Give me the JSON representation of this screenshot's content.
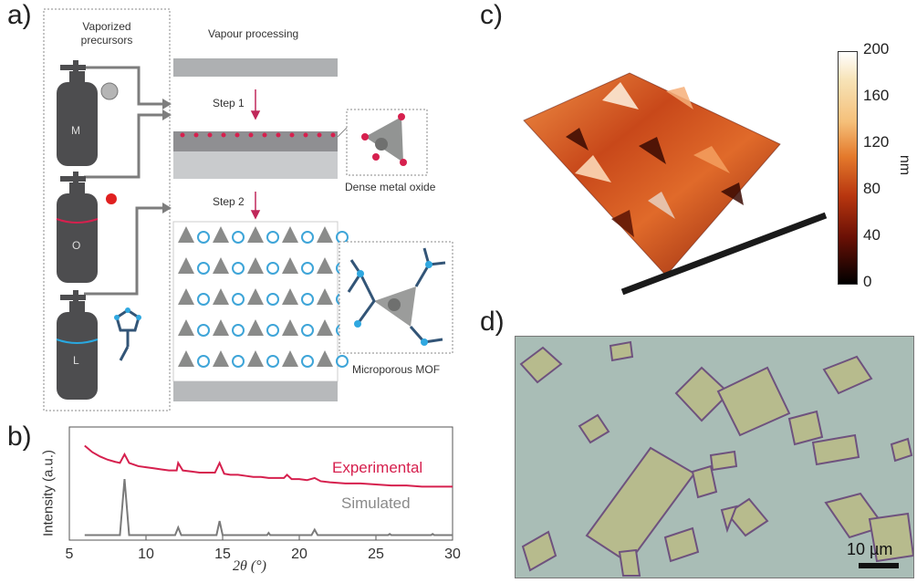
{
  "panels": {
    "a": "a)",
    "b": "b)",
    "c": "c)",
    "d": "d)"
  },
  "panel_a": {
    "left_title": "Vaporized\nprecursors",
    "right_title": "Vapour processing",
    "step1": "Step 1",
    "step2": "Step 2",
    "inset1": "Dense metal oxide",
    "inset2": "Microporous MOF",
    "cylinders": [
      "M",
      "O",
      "L"
    ]
  },
  "panel_c": {
    "colorbar_ticks": [
      "200",
      "160",
      "120",
      "80",
      "40",
      "0"
    ],
    "colorbar_unit": "nm"
  },
  "panel_d": {
    "scale_label": "10 µm"
  },
  "chart_data": {
    "type": "line",
    "title": "",
    "xlabel": "2θ (°)",
    "ylabel": "Intensity (a.u.)",
    "xlim": [
      5,
      30
    ],
    "x_ticks": [
      "5",
      "10",
      "15",
      "20",
      "25",
      "30"
    ],
    "series": [
      {
        "name": "Experimental",
        "color": "#d6204e",
        "points": [
          [
            6,
            0.86
          ],
          [
            6.5,
            0.8
          ],
          [
            7,
            0.76
          ],
          [
            7.5,
            0.73
          ],
          [
            8,
            0.71
          ],
          [
            8.3,
            0.7
          ],
          [
            8.6,
            0.78
          ],
          [
            8.9,
            0.7
          ],
          [
            9.5,
            0.67
          ],
          [
            10,
            0.66
          ],
          [
            10.5,
            0.65
          ],
          [
            11,
            0.64
          ],
          [
            11.5,
            0.63
          ],
          [
            12,
            0.63
          ],
          [
            12.1,
            0.7
          ],
          [
            12.4,
            0.63
          ],
          [
            13,
            0.62
          ],
          [
            13.5,
            0.61
          ],
          [
            14,
            0.61
          ],
          [
            14.5,
            0.61
          ],
          [
            14.8,
            0.7
          ],
          [
            15.1,
            0.6
          ],
          [
            15.5,
            0.59
          ],
          [
            16,
            0.59
          ],
          [
            16.5,
            0.58
          ],
          [
            17,
            0.57
          ],
          [
            17.5,
            0.57
          ],
          [
            18,
            0.56
          ],
          [
            18.5,
            0.56
          ],
          [
            19,
            0.56
          ],
          [
            19.2,
            0.59
          ],
          [
            19.5,
            0.55
          ],
          [
            20,
            0.55
          ],
          [
            20.5,
            0.54
          ],
          [
            21,
            0.56
          ],
          [
            21.4,
            0.53
          ],
          [
            22,
            0.52
          ],
          [
            23,
            0.51
          ],
          [
            24,
            0.51
          ],
          [
            25,
            0.5
          ],
          [
            26,
            0.49
          ],
          [
            27,
            0.49
          ],
          [
            28,
            0.48
          ],
          [
            29,
            0.48
          ],
          [
            30,
            0.48
          ]
        ]
      },
      {
        "name": "Simulated",
        "color": "#7a7a7a",
        "points": [
          [
            6,
            0.03
          ],
          [
            8.3,
            0.03
          ],
          [
            8.6,
            0.55
          ],
          [
            8.9,
            0.03
          ],
          [
            11.9,
            0.03
          ],
          [
            12.1,
            0.1
          ],
          [
            12.3,
            0.03
          ],
          [
            14.6,
            0.03
          ],
          [
            14.8,
            0.16
          ],
          [
            15.0,
            0.03
          ],
          [
            17.9,
            0.03
          ],
          [
            18.0,
            0.05
          ],
          [
            18.1,
            0.03
          ],
          [
            20.8,
            0.03
          ],
          [
            21.0,
            0.08
          ],
          [
            21.2,
            0.03
          ],
          [
            25.8,
            0.03
          ],
          [
            25.9,
            0.04
          ],
          [
            26.0,
            0.03
          ],
          [
            28.6,
            0.03
          ],
          [
            28.7,
            0.04
          ],
          [
            28.8,
            0.03
          ],
          [
            30,
            0.03
          ]
        ]
      }
    ]
  }
}
